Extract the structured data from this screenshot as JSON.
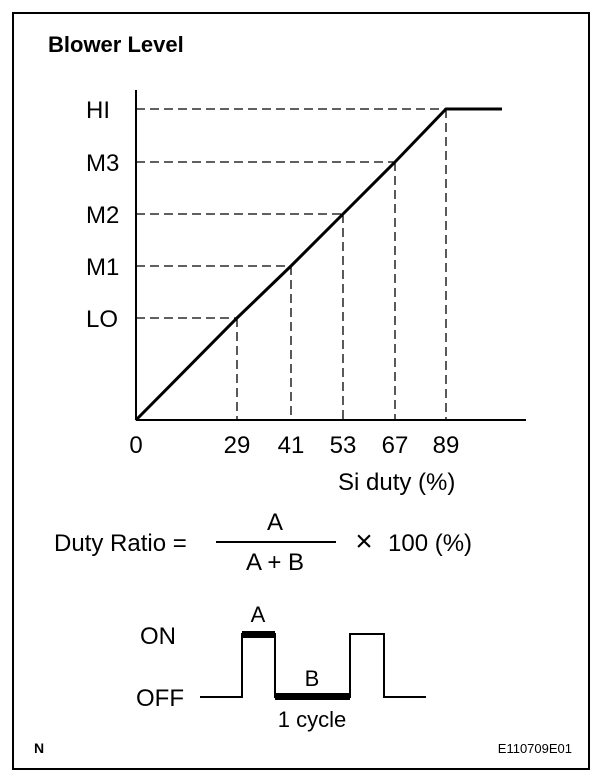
{
  "title": "Blower Level",
  "chart_data": {
    "type": "line",
    "y_levels": [
      "LO",
      "M1",
      "M2",
      "M3",
      "HI"
    ],
    "x_ticks": [
      "0",
      "29",
      "41",
      "53",
      "67",
      "89"
    ],
    "points": [
      {
        "x": 0,
        "y": "0"
      },
      {
        "x": 29,
        "y": "LO"
      },
      {
        "x": 41,
        "y": "M1"
      },
      {
        "x": 53,
        "y": "M2"
      },
      {
        "x": 67,
        "y": "M3"
      },
      {
        "x": 89,
        "y": "HI"
      }
    ],
    "xlabel": "Si duty (%)",
    "ylabel": ""
  },
  "formula": {
    "lhs": "Duty Ratio =",
    "numerator": "A",
    "denominator": "A + B",
    "rhs": "100 (%)",
    "times_symbol": "×"
  },
  "waveform": {
    "on_label": "ON",
    "off_label": "OFF",
    "a_label": "A",
    "b_label": "B",
    "cycle_label": "1 cycle"
  },
  "footer": {
    "left": "N",
    "right": "E110709E01"
  }
}
